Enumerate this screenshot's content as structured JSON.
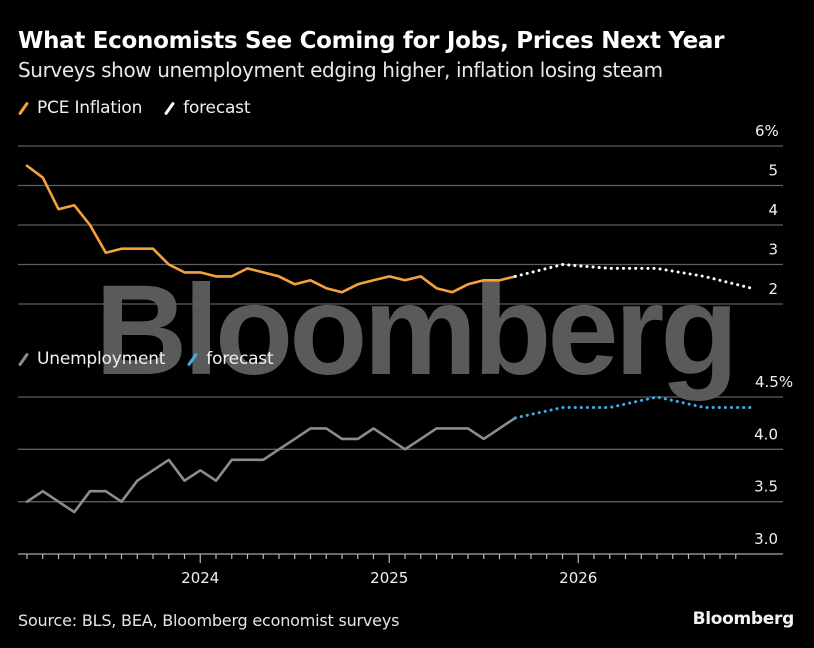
{
  "header": {
    "title": "What Economists See Coming for Jobs, Prices Next Year",
    "subtitle": "Surveys show unemployment edging higher, inflation losing steam"
  },
  "footer": {
    "source": "Source: BLS, BEA, Bloomberg economist surveys",
    "brand": "Bloomberg"
  },
  "watermark": "Bloomberg",
  "colors": {
    "background": "#000000",
    "inflation": "#f5a23a",
    "inflation_forecast": "#ffffff",
    "unemployment": "#8c8c8c",
    "unemployment_forecast": "#3ab0e8",
    "grid": "#5e5e5e"
  },
  "chart_data": [
    {
      "type": "line",
      "title": "PCE Inflation",
      "ylabel": "%",
      "ylim": [
        2,
        6
      ],
      "yticks": [
        2,
        3,
        4,
        5,
        6
      ],
      "ytick_labels": [
        "2",
        "3",
        "4",
        "5",
        "6%"
      ],
      "grid": true,
      "legend": [
        "PCE Inflation",
        "forecast"
      ],
      "legend_placement": "top-left",
      "x_start": "2023-02",
      "x_step": "month",
      "series": [
        {
          "name": "PCE Inflation",
          "months_from_start": [
            0,
            1,
            2,
            3,
            4,
            5,
            6,
            7,
            8,
            9,
            10,
            11,
            12,
            13,
            14,
            15,
            16,
            17,
            18,
            19,
            20,
            21,
            22,
            23,
            24,
            25,
            26,
            27,
            28,
            29,
            30,
            31
          ],
          "values": [
            5.5,
            5.2,
            4.4,
            4.5,
            4.0,
            3.3,
            3.4,
            3.4,
            3.4,
            3.0,
            2.8,
            2.8,
            2.7,
            2.7,
            2.9,
            2.8,
            2.7,
            2.5,
            2.6,
            2.4,
            2.3,
            2.5,
            2.6,
            2.7,
            2.6,
            2.7,
            2.4,
            2.3,
            2.5,
            2.6,
            2.6,
            2.7
          ]
        },
        {
          "name": "forecast",
          "months_from_start": [
            31,
            34,
            37,
            40,
            43,
            46
          ],
          "values": [
            2.7,
            3.0,
            2.9,
            2.9,
            2.7,
            2.4
          ]
        }
      ]
    },
    {
      "type": "line",
      "title": "Unemployment",
      "ylabel": "%",
      "ylim": [
        3.0,
        4.5
      ],
      "yticks": [
        3.0,
        3.5,
        4.0,
        4.5
      ],
      "ytick_labels": [
        "3.0",
        "3.5",
        "4.0",
        "4.5%"
      ],
      "grid": true,
      "legend": [
        "Unemployment",
        "forecast"
      ],
      "legend_placement": "top-left",
      "x_start": "2023-02",
      "x_step": "month",
      "xtick_labels": [
        "2024",
        "2025",
        "2026"
      ],
      "xtick_label_months_from_start": [
        11,
        23,
        35
      ],
      "series": [
        {
          "name": "Unemployment",
          "months_from_start": [
            0,
            1,
            2,
            3,
            4,
            5,
            6,
            7,
            8,
            9,
            10,
            11,
            12,
            13,
            14,
            15,
            16,
            17,
            18,
            19,
            20,
            21,
            22,
            23,
            24,
            25,
            26,
            27,
            28,
            29,
            30,
            31
          ],
          "values": [
            3.5,
            3.6,
            3.5,
            3.4,
            3.6,
            3.6,
            3.5,
            3.7,
            3.8,
            3.9,
            3.7,
            3.8,
            3.7,
            3.9,
            3.9,
            3.9,
            4.0,
            4.1,
            4.2,
            4.2,
            4.1,
            4.1,
            4.2,
            4.1,
            4.0,
            4.1,
            4.2,
            4.2,
            4.2,
            4.1,
            4.2,
            4.3
          ]
        },
        {
          "name": "forecast",
          "months_from_start": [
            31,
            34,
            37,
            40,
            43,
            46
          ],
          "values": [
            4.3,
            4.4,
            4.4,
            4.5,
            4.4,
            4.4
          ]
        }
      ]
    }
  ]
}
